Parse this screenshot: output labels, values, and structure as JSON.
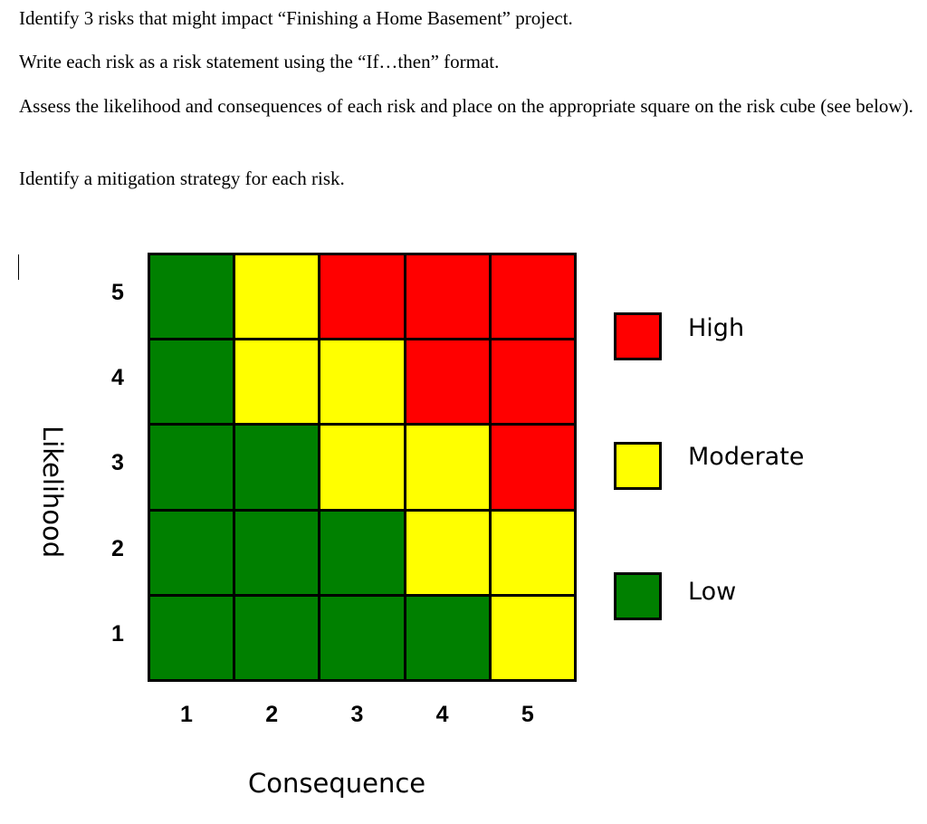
{
  "instructions": [
    "Identify 3 risks that might impact “Finishing a Home Basement” project.",
    "Write each risk as a risk statement using the “If…then” format.",
    "Assess the likelihood and consequences of each risk and place on the appropriate square on the risk cube (see below).",
    "Identify a mitigation strategy for each risk."
  ],
  "risk_cube": {
    "y_label": "Likelihood",
    "x_label": "Consequence",
    "y_ticks": [
      "5",
      "4",
      "3",
      "2",
      "1"
    ],
    "x_ticks": [
      "1",
      "2",
      "3",
      "4",
      "5"
    ],
    "rows": [
      [
        "Low",
        "Moderate",
        "High",
        "High",
        "High"
      ],
      [
        "Low",
        "Moderate",
        "Moderate",
        "High",
        "High"
      ],
      [
        "Low",
        "Low",
        "Moderate",
        "Moderate",
        "High"
      ],
      [
        "Low",
        "Low",
        "Low",
        "Moderate",
        "Moderate"
      ],
      [
        "Low",
        "Low",
        "Low",
        "Low",
        "Moderate"
      ]
    ],
    "colors": {
      "High": "#ff0000",
      "Moderate": "#ffff00",
      "Low": "#008000"
    },
    "legend": [
      "High",
      "Moderate",
      "Low"
    ]
  }
}
